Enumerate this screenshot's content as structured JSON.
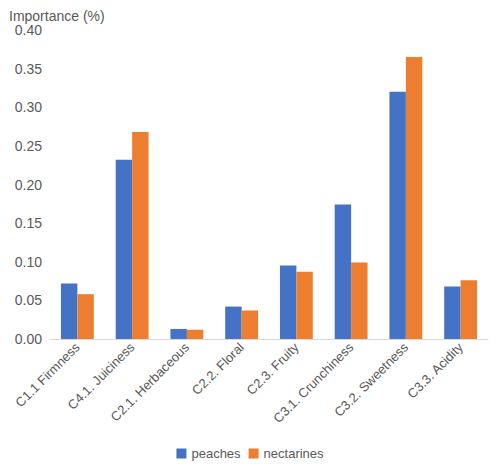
{
  "chart_data": {
    "type": "bar",
    "ylabel": "Importance (%)",
    "categories": [
      "C1.1 Firmness",
      "C4.1. Juiciness",
      "C2.1. Herbaceous",
      "C2.2. Floral",
      "C2.3. Fruity",
      "C3.1. Crunchiness",
      "C3.2. Sweetness",
      "C3.3. Acidity"
    ],
    "series": [
      {
        "name": "peaches",
        "color": "#4472c4",
        "values": [
          0.072,
          0.232,
          0.013,
          0.042,
          0.095,
          0.174,
          0.32,
          0.068
        ]
      },
      {
        "name": "nectarines",
        "color": "#ed7d31",
        "values": [
          0.058,
          0.268,
          0.012,
          0.037,
          0.087,
          0.099,
          0.365,
          0.076
        ]
      }
    ],
    "ylim": [
      0,
      0.4
    ],
    "yticks": [
      {
        "value": 0,
        "label": "0.00"
      },
      0.05,
      {
        "value": 0.1,
        "label": "0.10"
      },
      0.15,
      {
        "value": 0.2,
        "label": "0.20"
      },
      0.25,
      {
        "value": 0.3,
        "label": "0.30"
      },
      0.35,
      {
        "value": 0.4,
        "label": "0.40"
      }
    ],
    "grid": false,
    "legend": "bottom"
  }
}
